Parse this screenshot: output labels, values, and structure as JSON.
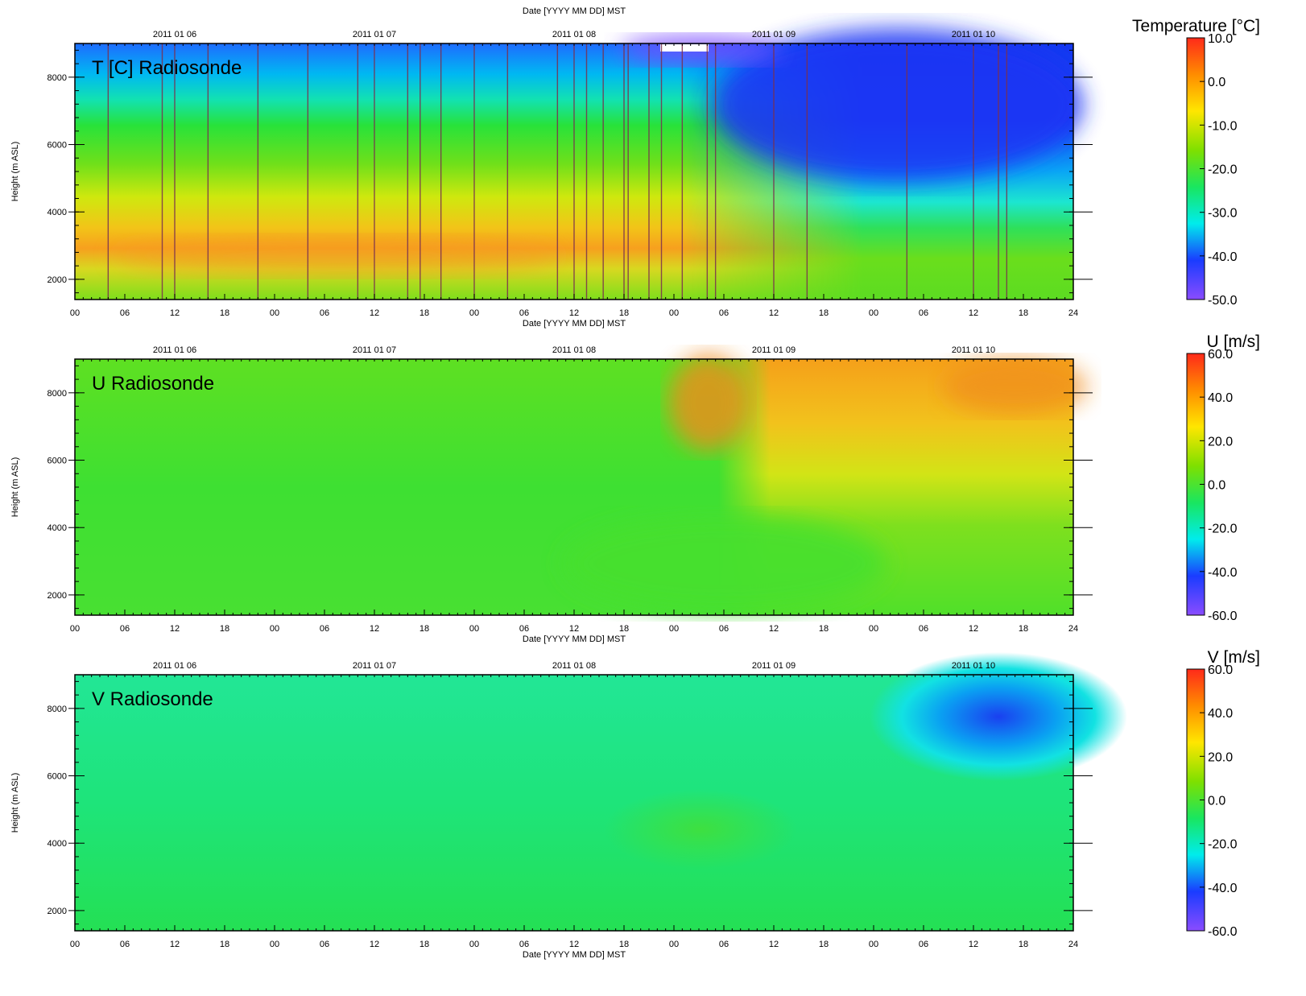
{
  "chart_data": [
    {
      "type": "heatmap",
      "title": "T [C] Radiosonde",
      "xlabel": "Date [YYYY MM DD] MST",
      "ylabel": "Height (m ASL)",
      "top_xlabel": "Date [YYYY MM DD] MST",
      "date_ticks": [
        "2011 01 06",
        "2011 01 07",
        "2011 01 08",
        "2011 01 09",
        "2011 01 10"
      ],
      "hour_ticks": [
        "00",
        "06",
        "12",
        "18",
        "00",
        "06",
        "12",
        "18",
        "00",
        "06",
        "12",
        "18",
        "00",
        "06",
        "12",
        "18",
        "00",
        "06",
        "12",
        "18",
        "24"
      ],
      "y_ticks": [
        2000,
        4000,
        6000,
        8000
      ],
      "ylim": [
        1400,
        9000
      ],
      "x_range_hours": [
        0,
        120
      ],
      "colorbar": {
        "title": "Temperature [°C]",
        "labels": [
          "10.0",
          "0.0",
          "-10.0",
          "-20.0",
          "-30.0",
          "-40.0",
          "-50.0"
        ],
        "range": [
          -50,
          10
        ]
      },
      "launch_times_hours": [
        4,
        10.5,
        12,
        16,
        22,
        28,
        34,
        36,
        40,
        41.5,
        44,
        48,
        52,
        58,
        60,
        61.5,
        63.5,
        66,
        66.5,
        69,
        70.5,
        73,
        76,
        77,
        84,
        88,
        100,
        108,
        111,
        112
      ]
    },
    {
      "type": "heatmap",
      "title": "U Radiosonde",
      "xlabel": "Date [YYYY MM DD] MST",
      "ylabel": "Height (m ASL)",
      "date_ticks": [
        "2011 01 06",
        "2011 01 07",
        "2011 01 08",
        "2011 01 09",
        "2011 01 10"
      ],
      "hour_ticks": [
        "00",
        "06",
        "12",
        "18",
        "00",
        "06",
        "12",
        "18",
        "00",
        "06",
        "12",
        "18",
        "00",
        "06",
        "12",
        "18",
        "00",
        "06",
        "12",
        "18",
        "24"
      ],
      "y_ticks": [
        2000,
        4000,
        6000,
        8000
      ],
      "ylim": [
        1400,
        9000
      ],
      "x_range_hours": [
        0,
        120
      ],
      "colorbar": {
        "title": "U [m/s]",
        "labels": [
          "60.0",
          "40.0",
          "20.0",
          "0.0",
          "-20.0",
          "-40.0",
          "-60.0"
        ],
        "range": [
          -60,
          60
        ]
      }
    },
    {
      "type": "heatmap",
      "title": "V Radiosonde",
      "xlabel": "Date [YYYY MM DD] MST",
      "ylabel": "Height (m ASL)",
      "date_ticks": [
        "2011 01 06",
        "2011 01 07",
        "2011 01 08",
        "2011 01 09",
        "2011 01 10"
      ],
      "hour_ticks": [
        "00",
        "06",
        "12",
        "18",
        "00",
        "06",
        "12",
        "18",
        "00",
        "06",
        "12",
        "18",
        "00",
        "06",
        "12",
        "18",
        "00",
        "06",
        "12",
        "18",
        "24"
      ],
      "y_ticks": [
        2000,
        4000,
        6000,
        8000
      ],
      "ylim": [
        1400,
        9000
      ],
      "x_range_hours": [
        0,
        120
      ],
      "colorbar": {
        "title": "V [m/s]",
        "labels": [
          "60.0",
          "40.0",
          "20.0",
          "0.0",
          "-20.0",
          "-40.0",
          "-60.0"
        ],
        "range": [
          -60,
          60
        ]
      }
    }
  ]
}
